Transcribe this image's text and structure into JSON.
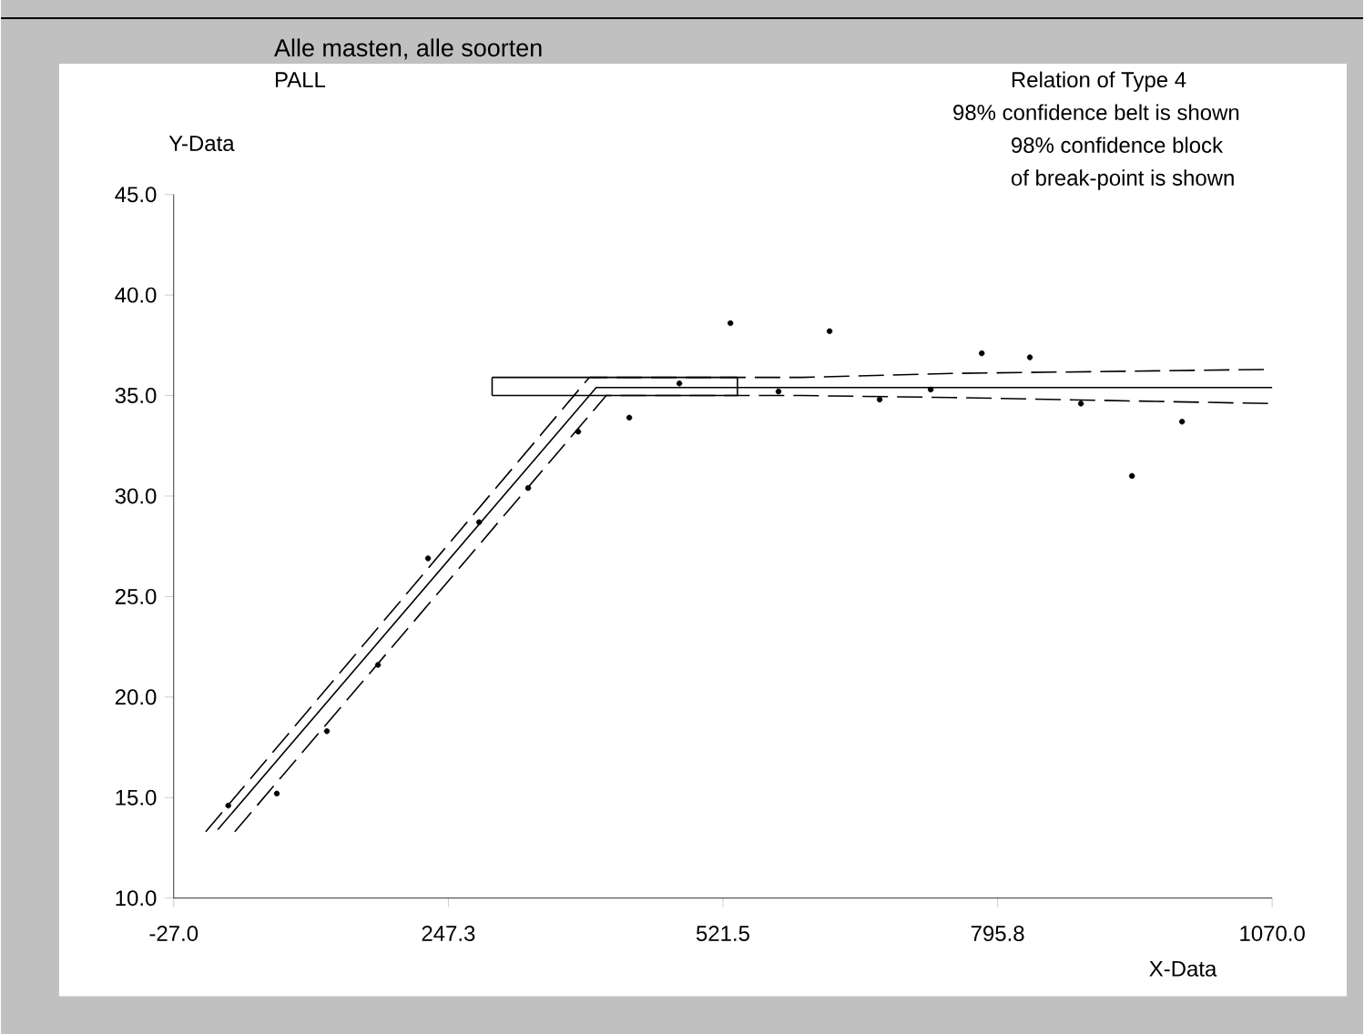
{
  "chart_data": {
    "type": "scatter",
    "title": "Alle masten, alle soorten",
    "subtitle": "PALL",
    "xlabel": "X-Data",
    "ylabel": "Y-Data",
    "annotations": [
      "Relation of Type 4",
      "98% confidence belt is shown",
      "98% confidence block",
      "of break-point is shown"
    ],
    "xlim": [
      -27,
      1070
    ],
    "ylim": [
      10,
      45
    ],
    "xticks": [
      {
        "value": -27,
        "label": "-27.0"
      },
      {
        "value": 247.3,
        "label": "247.3"
      },
      {
        "value": 521.5,
        "label": "521.5"
      },
      {
        "value": 795.8,
        "label": "795.8"
      },
      {
        "value": 1070,
        "label": "1070.0"
      }
    ],
    "yticks": [
      {
        "value": 10,
        "label": "10.0"
      },
      {
        "value": 15,
        "label": "15.0"
      },
      {
        "value": 20,
        "label": "20.0"
      },
      {
        "value": 25,
        "label": "25.0"
      },
      {
        "value": 30,
        "label": "30.0"
      },
      {
        "value": 35,
        "label": "35.0"
      },
      {
        "value": 40,
        "label": "40.0"
      },
      {
        "value": 45,
        "label": "45.0"
      }
    ],
    "grid": false,
    "series": [
      {
        "color": "#000000",
        "marker": "circle",
        "x": [
          27.5,
          76,
          126,
          177,
          227,
          278,
          327,
          377,
          428,
          478,
          529,
          577,
          628,
          678,
          729,
          780,
          828,
          879,
          930,
          980
        ],
        "values": [
          14.6,
          15.2,
          18.3,
          21.6,
          26.9,
          28.7,
          30.4,
          33.2,
          33.9,
          35.6,
          38.6,
          35.2,
          38.2,
          34.8,
          35.3,
          37.1,
          36.9,
          34.6,
          31.0,
          33.7
        ]
      },
      {
        "type": "line",
        "color": "#000000",
        "marker": "none",
        "line_style": "solid",
        "x": [
          17,
          395,
          1070
        ],
        "values": [
          13.4,
          35.4,
          35.4
        ]
      },
      {
        "type": "line",
        "color": "#000000",
        "marker": "none",
        "line_style": "dashed",
        "x": [
          5,
          388,
          600,
          750,
          1070
        ],
        "values": [
          13.3,
          35.9,
          35.9,
          36.1,
          36.3
        ]
      },
      {
        "type": "line",
        "color": "#000000",
        "marker": "none",
        "line_style": "dashed",
        "x": [
          34,
          405,
          600,
          750,
          1070
        ],
        "values": [
          13.3,
          35.0,
          35.0,
          34.9,
          34.6
        ]
      },
      {
        "type": "line",
        "color": "#000000",
        "marker": "none",
        "line_style": "solid",
        "x": [
          291,
          536
        ],
        "values": [
          35.9,
          35.9
        ],
        "errors": [
          [
            35.0,
            35.9
          ],
          [
            35.0,
            35.9
          ]
        ]
      },
      {
        "type": "line",
        "color": "#000000",
        "marker": "none",
        "line_style": "solid",
        "x": [
          291,
          536
        ],
        "values": [
          35.0,
          35.0
        ]
      }
    ]
  }
}
